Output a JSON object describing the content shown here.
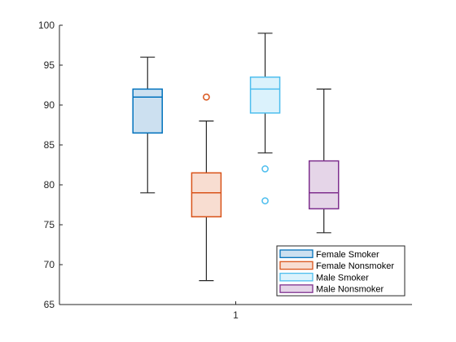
{
  "chart_data": {
    "type": "box",
    "categories": [
      "1"
    ],
    "ylim": [
      65,
      100
    ],
    "yticks": [
      65,
      70,
      75,
      80,
      85,
      90,
      95,
      100
    ],
    "grid": false,
    "legend_position": "bottom-right",
    "series": [
      {
        "name": "Female Smoker",
        "color": "#0072BD",
        "fill": "#cce0f0",
        "whisker_low": 79,
        "q1": 86.5,
        "median": 91,
        "q3": 92,
        "whisker_high": 96,
        "outliers": []
      },
      {
        "name": "Female Nonsmoker",
        "color": "#D95319",
        "fill": "#f8ddd1",
        "whisker_low": 68,
        "q1": 76,
        "median": 79,
        "q3": 81.5,
        "whisker_high": 88,
        "outliers": [
          91
        ]
      },
      {
        "name": "Male Smoker",
        "color": "#4DBEEE",
        "fill": "#dbf2fc",
        "whisker_low": 84,
        "q1": 89,
        "median": 92,
        "q3": 93.5,
        "whisker_high": 99,
        "outliers": [
          82,
          78
        ]
      },
      {
        "name": "Male Nonsmoker",
        "color": "#7E2F8E",
        "fill": "#e5d5e8",
        "whisker_low": 74,
        "q1": 77,
        "median": 79,
        "q3": 83,
        "whisker_high": 92,
        "outliers": []
      }
    ]
  }
}
